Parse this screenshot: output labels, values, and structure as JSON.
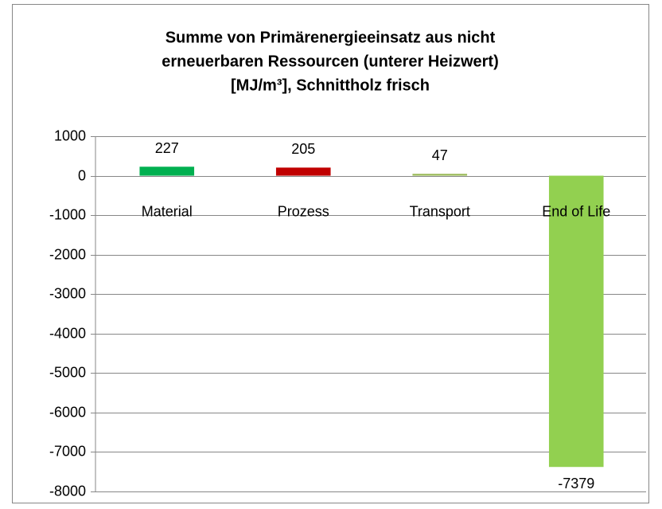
{
  "chart_data": {
    "type": "bar",
    "title": [
      "Summe von Primärenergieeinsatz aus nicht",
      "erneuerbaren Ressourcen (unterer Heizwert)",
      "[MJ/m³], Schnittholz frisch"
    ],
    "categories": [
      "Material",
      "Prozess",
      "Transport",
      "End of Life"
    ],
    "values": [
      227,
      205,
      47,
      -7379
    ],
    "colors": [
      "#00b050",
      "#c00000",
      "#9bbb59",
      "#92d050"
    ],
    "ylim": [
      -8000,
      1000
    ],
    "yticks": [
      -8000,
      -7000,
      -6000,
      -5000,
      -4000,
      -3000,
      -2000,
      -1000,
      0,
      1000
    ],
    "grid": true
  }
}
